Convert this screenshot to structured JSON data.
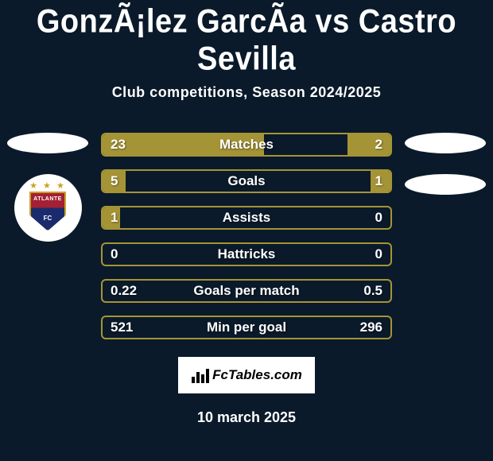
{
  "title": "GonzÃ¡lez GarcÃ­a vs Castro Sevilla",
  "subtitle": "Club competitions, Season 2024/2025",
  "date": "10 march 2025",
  "footer_brand": "FcTables.com",
  "colors": {
    "background": "#0a1a2a",
    "bar_border": "#a59436",
    "bar_left_fill": "#a59436",
    "bar_right_fill": "#a59436",
    "text": "#ffffff",
    "label_text": "#ffffff"
  },
  "player_left": {
    "badge_text": "ATLANTE",
    "badge_fc": "FC"
  },
  "stats": [
    {
      "label": "Matches",
      "left_val": "23",
      "right_val": "2",
      "left_pct": 56,
      "right_pct": 15
    },
    {
      "label": "Goals",
      "left_val": "5",
      "right_val": "1",
      "left_pct": 8,
      "right_pct": 7
    },
    {
      "label": "Assists",
      "left_val": "1",
      "right_val": "0",
      "left_pct": 6,
      "right_pct": 0
    },
    {
      "label": "Hattricks",
      "left_val": "0",
      "right_val": "0",
      "left_pct": 0,
      "right_pct": 0
    },
    {
      "label": "Goals per match",
      "left_val": "0.22",
      "right_val": "0.5",
      "left_pct": 0,
      "right_pct": 0
    },
    {
      "label": "Min per goal",
      "left_val": "521",
      "right_val": "296",
      "left_pct": 0,
      "right_pct": 0
    }
  ]
}
